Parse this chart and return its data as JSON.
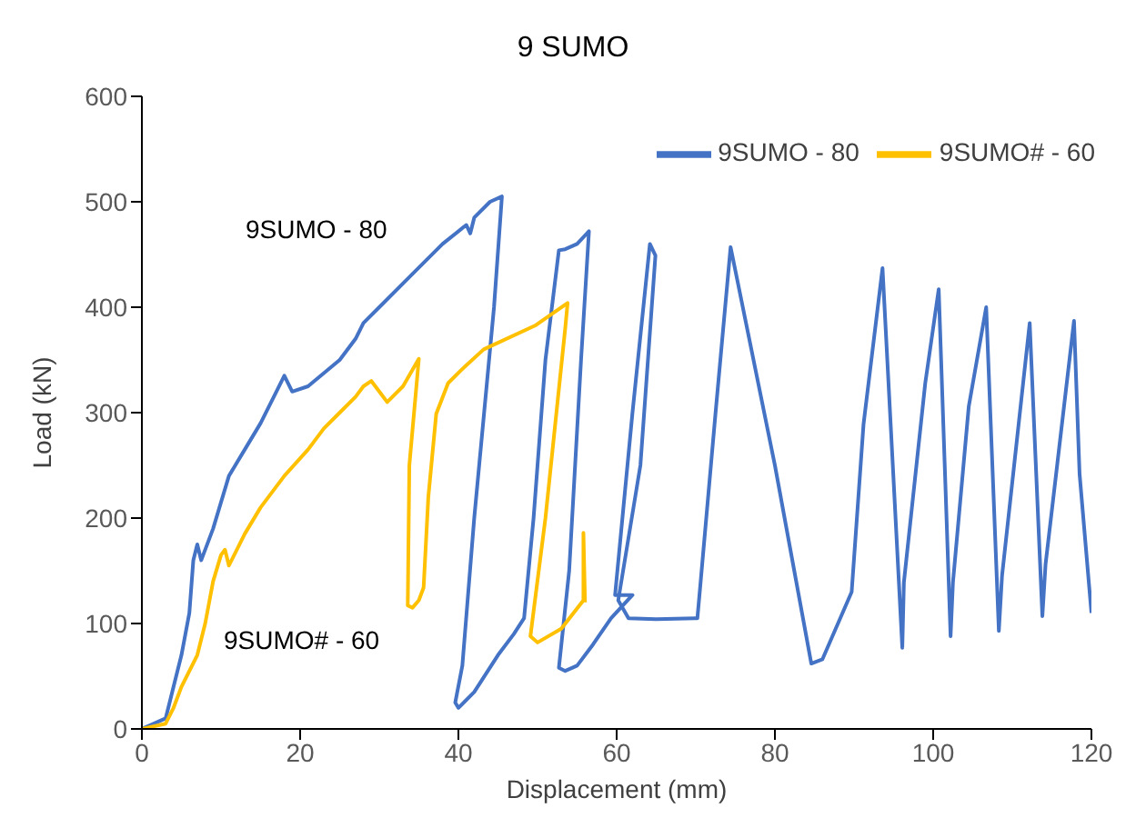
{
  "chart_data": {
    "type": "line",
    "title": "9 SUMO",
    "xlabel": "Displacement (mm)",
    "ylabel": "Load (kN)",
    "xlim": [
      0,
      120
    ],
    "xticks": [
      0,
      20,
      40,
      60,
      80,
      100,
      120
    ],
    "ylim": [
      0,
      600
    ],
    "yticks": [
      0,
      100,
      200,
      300,
      400,
      500,
      600
    ],
    "grid": false,
    "legend": "top right",
    "marker": "none",
    "line_style": "solid",
    "annotations": [
      "9SUMO - 80",
      "9SUMO# - 60"
    ],
    "series": [
      {
        "name": "9SUMO - 80",
        "color": "#4472c4",
        "x": [
          0,
          3,
          4,
          5,
          6,
          6.5,
          7,
          7.5,
          9,
          11,
          13,
          15,
          17,
          18,
          19,
          21,
          25,
          27,
          28,
          30,
          34,
          38,
          41,
          41.5,
          42,
          44,
          45.5,
          44.5,
          42,
          40.5,
          39.6,
          40,
          42,
          45,
          47,
          48.3,
          49.5,
          51,
          52.7,
          53.5,
          55,
          56.5,
          55.5,
          54,
          52.7,
          53.5,
          55,
          57,
          59.3,
          62,
          59.8,
          62,
          64.2,
          64.9,
          63,
          60.2,
          61.5,
          65,
          70.2,
          70.5,
          72.5,
          74.4,
          80,
          84.6,
          86,
          89.7,
          91.2,
          93.6,
          96.1,
          96.3,
          99,
          100.7,
          102.2,
          102.5,
          104.5,
          106.7,
          108.3,
          108.7,
          112.2,
          113.8,
          114.2,
          117.8,
          118.5,
          120
        ],
        "values": [
          0,
          10,
          40,
          70,
          110,
          160,
          175,
          160,
          190,
          240,
          265,
          290,
          320,
          335,
          320,
          325,
          350,
          370,
          385,
          400,
          430,
          460,
          478,
          470,
          485,
          500,
          505,
          400,
          200,
          60,
          25,
          20,
          35,
          70,
          90,
          105,
          200,
          350,
          454,
          455,
          460,
          472,
          350,
          150,
          58,
          55,
          60,
          80,
          105,
          127,
          127,
          300,
          460,
          449,
          250,
          122,
          105,
          104,
          105,
          130,
          300,
          457,
          250,
          62,
          66,
          130,
          289,
          437,
          77,
          139,
          328,
          417,
          88,
          139,
          306,
          400,
          93,
          145,
          385,
          107,
          156,
          387,
          242,
          110
        ]
      },
      {
        "name": "9SUMO# - 60",
        "color": "#ffc000",
        "x": [
          0,
          3,
          4,
          5,
          7,
          8,
          9,
          10,
          10.5,
          11,
          13,
          15,
          18,
          21,
          23,
          25,
          27,
          28,
          29,
          30,
          31,
          33,
          35,
          33.8,
          33.6,
          34.2,
          35,
          35.6,
          36.2,
          37.2,
          38.7,
          40.3,
          43.2,
          49.8,
          53.8,
          53.5,
          51,
          49.1,
          50,
          53,
          55.8,
          55.8,
          56
        ],
        "values": [
          0,
          5,
          20,
          40,
          70,
          100,
          140,
          165,
          170,
          155,
          185,
          210,
          240,
          265,
          285,
          300,
          315,
          325,
          330,
          320,
          310,
          325,
          351,
          250,
          117,
          115,
          122,
          134,
          220,
          299,
          328,
          340,
          360,
          383,
          404,
          380,
          200,
          88,
          82,
          95,
          122,
          186,
          120
        ]
      }
    ]
  }
}
